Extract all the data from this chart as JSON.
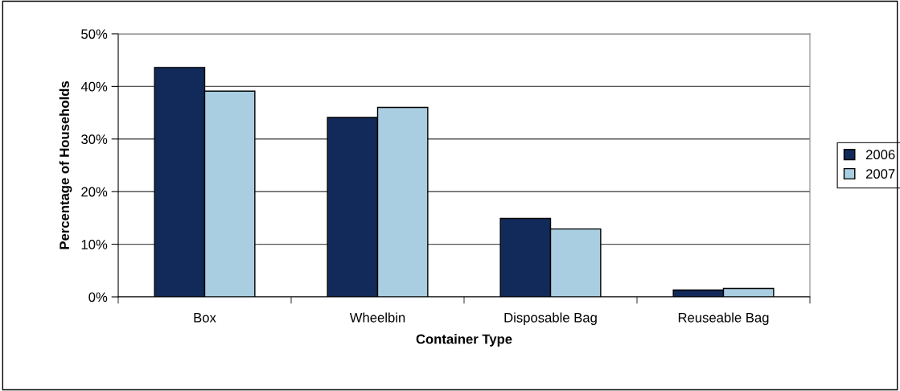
{
  "chart_data": {
    "type": "bar",
    "xlabel": "Container Type",
    "ylabel": "Percentage of Households",
    "categories": [
      "Box",
      "Wheelbin",
      "Disposable Bag",
      "Reuseable Bag"
    ],
    "series": [
      {
        "name": "2006",
        "color": "#122a5a",
        "values": [
          43.6,
          34.1,
          14.9,
          1.3
        ]
      },
      {
        "name": "2007",
        "color": "#a9cde1",
        "values": [
          39.1,
          36.0,
          12.9,
          1.6
        ]
      }
    ],
    "ylim": [
      0,
      50
    ],
    "yticks": [
      {
        "value": 0,
        "label": "0%"
      },
      {
        "value": 10,
        "label": "10%"
      },
      {
        "value": 20,
        "label": "20%"
      },
      {
        "value": 30,
        "label": "30%"
      },
      {
        "value": 40,
        "label": "40%"
      },
      {
        "value": 50,
        "label": "50%"
      }
    ],
    "grid": "y",
    "legend": "right"
  }
}
